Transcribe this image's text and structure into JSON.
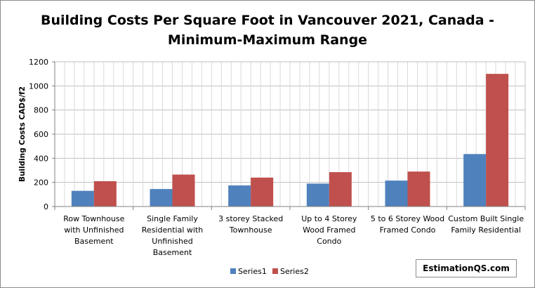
{
  "chart_data": {
    "type": "bar",
    "title": "Building Costs Per Square Foot in Vancouver 2021, Canada - Minimum-Maximum Range",
    "title_lines": [
      "Building Costs Per Square Foot in Vancouver 2021, Canada -",
      "Minimum-Maximum Range"
    ],
    "xlabel": "",
    "ylabel": "Building Costs  CAD$/f2",
    "ylim": [
      0,
      1200
    ],
    "yticks": [
      0,
      200,
      400,
      600,
      800,
      1000,
      1200
    ],
    "grid": true,
    "legend_position": "bottom",
    "categories": [
      "Row Townhouse with Unfinished Basement",
      "Single Family Residential with Unfinished Basement",
      "3 storey Stacked Townhouse",
      "Up to 4 Storey Wood Framed Condo",
      "5 to 6 Storey Wood Framed Condo",
      "Custom Built Single Family Residential"
    ],
    "category_lines": [
      [
        "Row Townhouse",
        "with Unfinished",
        "Basement"
      ],
      [
        "Single Family",
        "Residential with",
        "Unfinished",
        "Basement"
      ],
      [
        "3 storey Stacked",
        "Townhouse"
      ],
      [
        "Up to 4 Storey",
        "Wood Framed",
        "Condo"
      ],
      [
        "5 to 6 Storey Wood",
        "Framed Condo"
      ],
      [
        "Custom Built Single",
        "Family Residential"
      ]
    ],
    "series": [
      {
        "name": "Series1",
        "color": "#4f81bd",
        "values": [
          130,
          145,
          175,
          190,
          215,
          435
        ]
      },
      {
        "name": "Series2",
        "color": "#c0504d",
        "values": [
          210,
          265,
          240,
          285,
          290,
          1100
        ]
      }
    ]
  },
  "watermark": "EstimationQS.com"
}
